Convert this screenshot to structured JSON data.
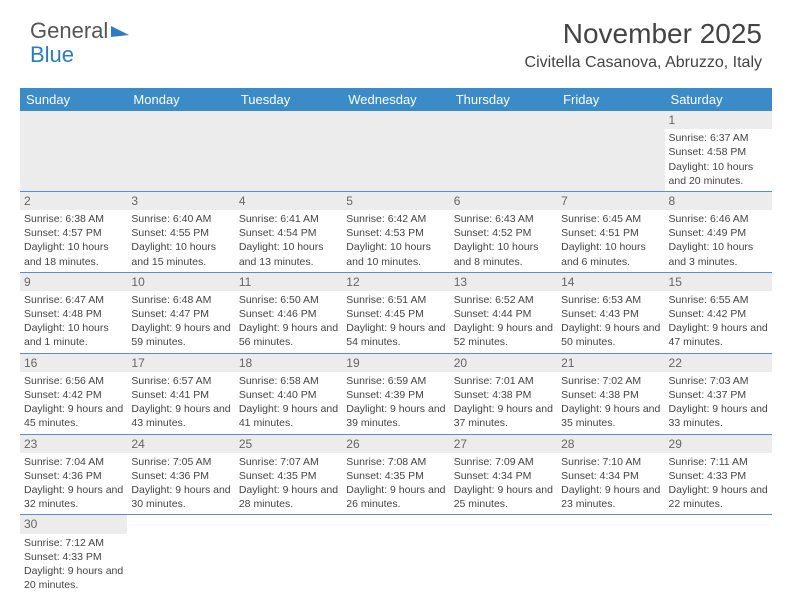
{
  "logo": {
    "part1": "General",
    "part2": "Blue"
  },
  "title": "November 2025",
  "subtitle": "Civitella Casanova, Abruzzo, Italy",
  "weekdays": [
    "Sunday",
    "Monday",
    "Tuesday",
    "Wednesday",
    "Thursday",
    "Friday",
    "Saturday"
  ],
  "header_bg": "#3b8bc9",
  "border_color": "#5a8fc1",
  "stripe_bg": "#ececec",
  "days": [
    {
      "n": 1,
      "sunrise": "6:37 AM",
      "sunset": "4:58 PM",
      "daylight": "10 hours and 20 minutes."
    },
    {
      "n": 2,
      "sunrise": "6:38 AM",
      "sunset": "4:57 PM",
      "daylight": "10 hours and 18 minutes."
    },
    {
      "n": 3,
      "sunrise": "6:40 AM",
      "sunset": "4:55 PM",
      "daylight": "10 hours and 15 minutes."
    },
    {
      "n": 4,
      "sunrise": "6:41 AM",
      "sunset": "4:54 PM",
      "daylight": "10 hours and 13 minutes."
    },
    {
      "n": 5,
      "sunrise": "6:42 AM",
      "sunset": "4:53 PM",
      "daylight": "10 hours and 10 minutes."
    },
    {
      "n": 6,
      "sunrise": "6:43 AM",
      "sunset": "4:52 PM",
      "daylight": "10 hours and 8 minutes."
    },
    {
      "n": 7,
      "sunrise": "6:45 AM",
      "sunset": "4:51 PM",
      "daylight": "10 hours and 6 minutes."
    },
    {
      "n": 8,
      "sunrise": "6:46 AM",
      "sunset": "4:49 PM",
      "daylight": "10 hours and 3 minutes."
    },
    {
      "n": 9,
      "sunrise": "6:47 AM",
      "sunset": "4:48 PM",
      "daylight": "10 hours and 1 minute."
    },
    {
      "n": 10,
      "sunrise": "6:48 AM",
      "sunset": "4:47 PM",
      "daylight": "9 hours and 59 minutes."
    },
    {
      "n": 11,
      "sunrise": "6:50 AM",
      "sunset": "4:46 PM",
      "daylight": "9 hours and 56 minutes."
    },
    {
      "n": 12,
      "sunrise": "6:51 AM",
      "sunset": "4:45 PM",
      "daylight": "9 hours and 54 minutes."
    },
    {
      "n": 13,
      "sunrise": "6:52 AM",
      "sunset": "4:44 PM",
      "daylight": "9 hours and 52 minutes."
    },
    {
      "n": 14,
      "sunrise": "6:53 AM",
      "sunset": "4:43 PM",
      "daylight": "9 hours and 50 minutes."
    },
    {
      "n": 15,
      "sunrise": "6:55 AM",
      "sunset": "4:42 PM",
      "daylight": "9 hours and 47 minutes."
    },
    {
      "n": 16,
      "sunrise": "6:56 AM",
      "sunset": "4:42 PM",
      "daylight": "9 hours and 45 minutes."
    },
    {
      "n": 17,
      "sunrise": "6:57 AM",
      "sunset": "4:41 PM",
      "daylight": "9 hours and 43 minutes."
    },
    {
      "n": 18,
      "sunrise": "6:58 AM",
      "sunset": "4:40 PM",
      "daylight": "9 hours and 41 minutes."
    },
    {
      "n": 19,
      "sunrise": "6:59 AM",
      "sunset": "4:39 PM",
      "daylight": "9 hours and 39 minutes."
    },
    {
      "n": 20,
      "sunrise": "7:01 AM",
      "sunset": "4:38 PM",
      "daylight": "9 hours and 37 minutes."
    },
    {
      "n": 21,
      "sunrise": "7:02 AM",
      "sunset": "4:38 PM",
      "daylight": "9 hours and 35 minutes."
    },
    {
      "n": 22,
      "sunrise": "7:03 AM",
      "sunset": "4:37 PM",
      "daylight": "9 hours and 33 minutes."
    },
    {
      "n": 23,
      "sunrise": "7:04 AM",
      "sunset": "4:36 PM",
      "daylight": "9 hours and 32 minutes."
    },
    {
      "n": 24,
      "sunrise": "7:05 AM",
      "sunset": "4:36 PM",
      "daylight": "9 hours and 30 minutes."
    },
    {
      "n": 25,
      "sunrise": "7:07 AM",
      "sunset": "4:35 PM",
      "daylight": "9 hours and 28 minutes."
    },
    {
      "n": 26,
      "sunrise": "7:08 AM",
      "sunset": "4:35 PM",
      "daylight": "9 hours and 26 minutes."
    },
    {
      "n": 27,
      "sunrise": "7:09 AM",
      "sunset": "4:34 PM",
      "daylight": "9 hours and 25 minutes."
    },
    {
      "n": 28,
      "sunrise": "7:10 AM",
      "sunset": "4:34 PM",
      "daylight": "9 hours and 23 minutes."
    },
    {
      "n": 29,
      "sunrise": "7:11 AM",
      "sunset": "4:33 PM",
      "daylight": "9 hours and 22 minutes."
    },
    {
      "n": 30,
      "sunrise": "7:12 AM",
      "sunset": "4:33 PM",
      "daylight": "9 hours and 20 minutes."
    }
  ],
  "labels": {
    "sunrise": "Sunrise:",
    "sunset": "Sunset:",
    "daylight": "Daylight:"
  },
  "first_weekday_index": 6
}
